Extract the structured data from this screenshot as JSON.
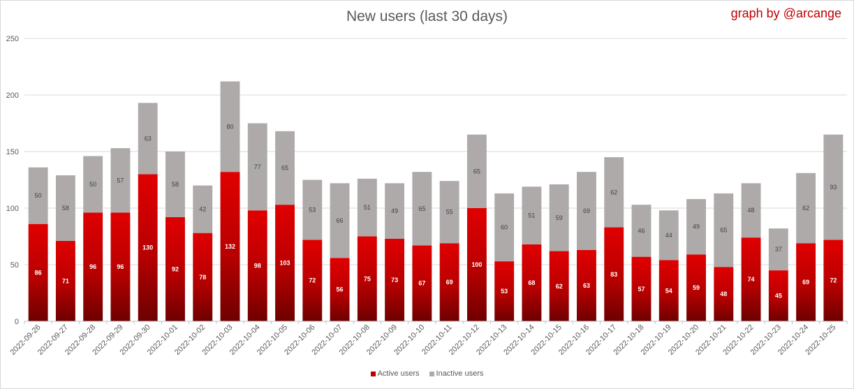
{
  "chart_data": {
    "type": "bar",
    "stacked": true,
    "title": "New users (last 30 days)",
    "credit": "graph by @arcange",
    "categories": [
      "2022-09-26",
      "2022-09-27",
      "2022-09-28",
      "2022-09-29",
      "2022-09-30",
      "2022-10-01",
      "2022-10-02",
      "2022-10-03",
      "2022-10-04",
      "2022-10-05",
      "2022-10-06",
      "2022-10-07",
      "2022-10-08",
      "2022-10-09",
      "2022-10-10",
      "2022-10-11",
      "2022-10-12",
      "2022-10-13",
      "2022-10-14",
      "2022-10-15",
      "2022-10-16",
      "2022-10-17",
      "2022-10-18",
      "2022-10-19",
      "2022-10-20",
      "2022-10-21",
      "2022-10-22",
      "2022-10-23",
      "2022-10-24",
      "2022-10-25"
    ],
    "series": [
      {
        "name": "Active users",
        "color": "#c00000",
        "values": [
          86,
          71,
          96,
          96,
          130,
          92,
          78,
          132,
          98,
          103,
          72,
          56,
          75,
          73,
          67,
          69,
          100,
          53,
          68,
          62,
          63,
          83,
          57,
          54,
          59,
          48,
          74,
          45,
          69,
          72
        ]
      },
      {
        "name": "Inactive users",
        "color": "#aeaaaa",
        "values": [
          50,
          58,
          50,
          57,
          63,
          58,
          42,
          80,
          77,
          65,
          53,
          66,
          51,
          49,
          65,
          55,
          65,
          60,
          51,
          59,
          69,
          62,
          46,
          44,
          49,
          65,
          48,
          37,
          62,
          93
        ]
      }
    ],
    "yticks": [
      0,
      50,
      100,
      150,
      200,
      250
    ],
    "ylim": [
      0,
      250
    ],
    "grid": true,
    "legend": "bottom"
  }
}
